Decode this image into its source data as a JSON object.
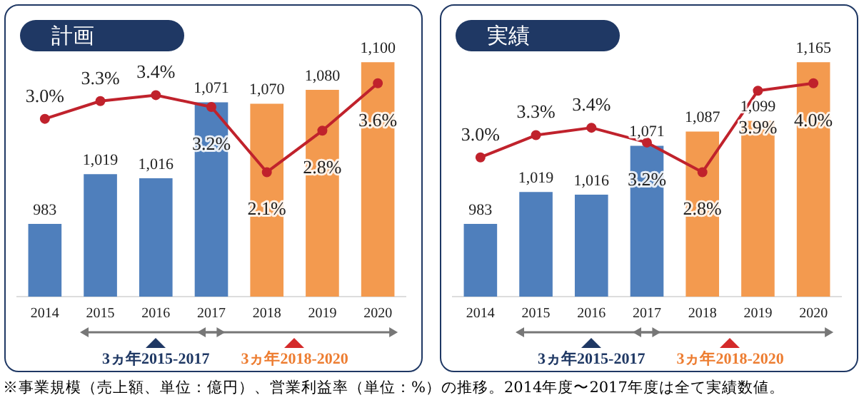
{
  "chart_data": [
    {
      "type": "bar",
      "title": "計画",
      "categories": [
        "2014",
        "2015",
        "2016",
        "2017",
        "2018",
        "2019",
        "2020"
      ],
      "series": [
        {
          "colors": [
            "#4f7fbc",
            "#4f7fbc",
            "#4f7fbc",
            "#4f7fbc",
            "#f39a4f",
            "#f39a4f",
            "#f39a4f"
          ],
          "values": [
            983,
            1019,
            1016,
            1071,
            1070,
            1080,
            1100
          ],
          "value_labels": [
            "983",
            "1,019",
            "1,016",
            "1,071",
            "1,070",
            "1,080",
            "1,100"
          ]
        },
        {
          "type": "line",
          "axis": "y2",
          "color": "#c0222c",
          "values": [
            3.0,
            3.3,
            3.4,
            3.2,
            2.1,
            2.8,
            3.6
          ],
          "value_labels": [
            "3.0%",
            "3.3%",
            "3.4%",
            "3.2%",
            "2.1%",
            "2.8%",
            "3.6%"
          ]
        }
      ],
      "marker": "circle",
      "grid": false,
      "legend": false,
      "annotations": [
        "3ヵ年2015-2017",
        "3ヵ年2018-2020",
        "※事業規模（売上額、単位：億円）、営業利益率（単位：%）の推移。2014年度〜2017年度は全て実績数値。"
      ]
    },
    {
      "type": "bar",
      "title": "実績",
      "categories": [
        "2014",
        "2015",
        "2016",
        "2017",
        "2018",
        "2019",
        "2020"
      ],
      "series": [
        {
          "colors": [
            "#4f7fbc",
            "#4f7fbc",
            "#4f7fbc",
            "#4f7fbc",
            "#f39a4f",
            "#f39a4f",
            "#f39a4f"
          ],
          "values": [
            983,
            1019,
            1016,
            1071,
            1087,
            1099,
            1165
          ],
          "value_labels": [
            "983",
            "1,019",
            "1,016",
            "1,071",
            "1,087",
            "1,099",
            "1,165"
          ]
        },
        {
          "type": "line",
          "axis": "y2",
          "color": "#c0222c",
          "values": [
            3.0,
            3.3,
            3.4,
            3.2,
            2.8,
            3.9,
            4.0
          ],
          "value_labels": [
            "3.0%",
            "3.3%",
            "3.4%",
            "3.2%",
            "2.8%",
            "3.9%",
            "4.0%"
          ]
        }
      ],
      "marker": "circle",
      "grid": false,
      "legend": false,
      "annotations": [
        "3ヵ年2015-2017",
        "3ヵ年2018-2020"
      ]
    }
  ]
}
